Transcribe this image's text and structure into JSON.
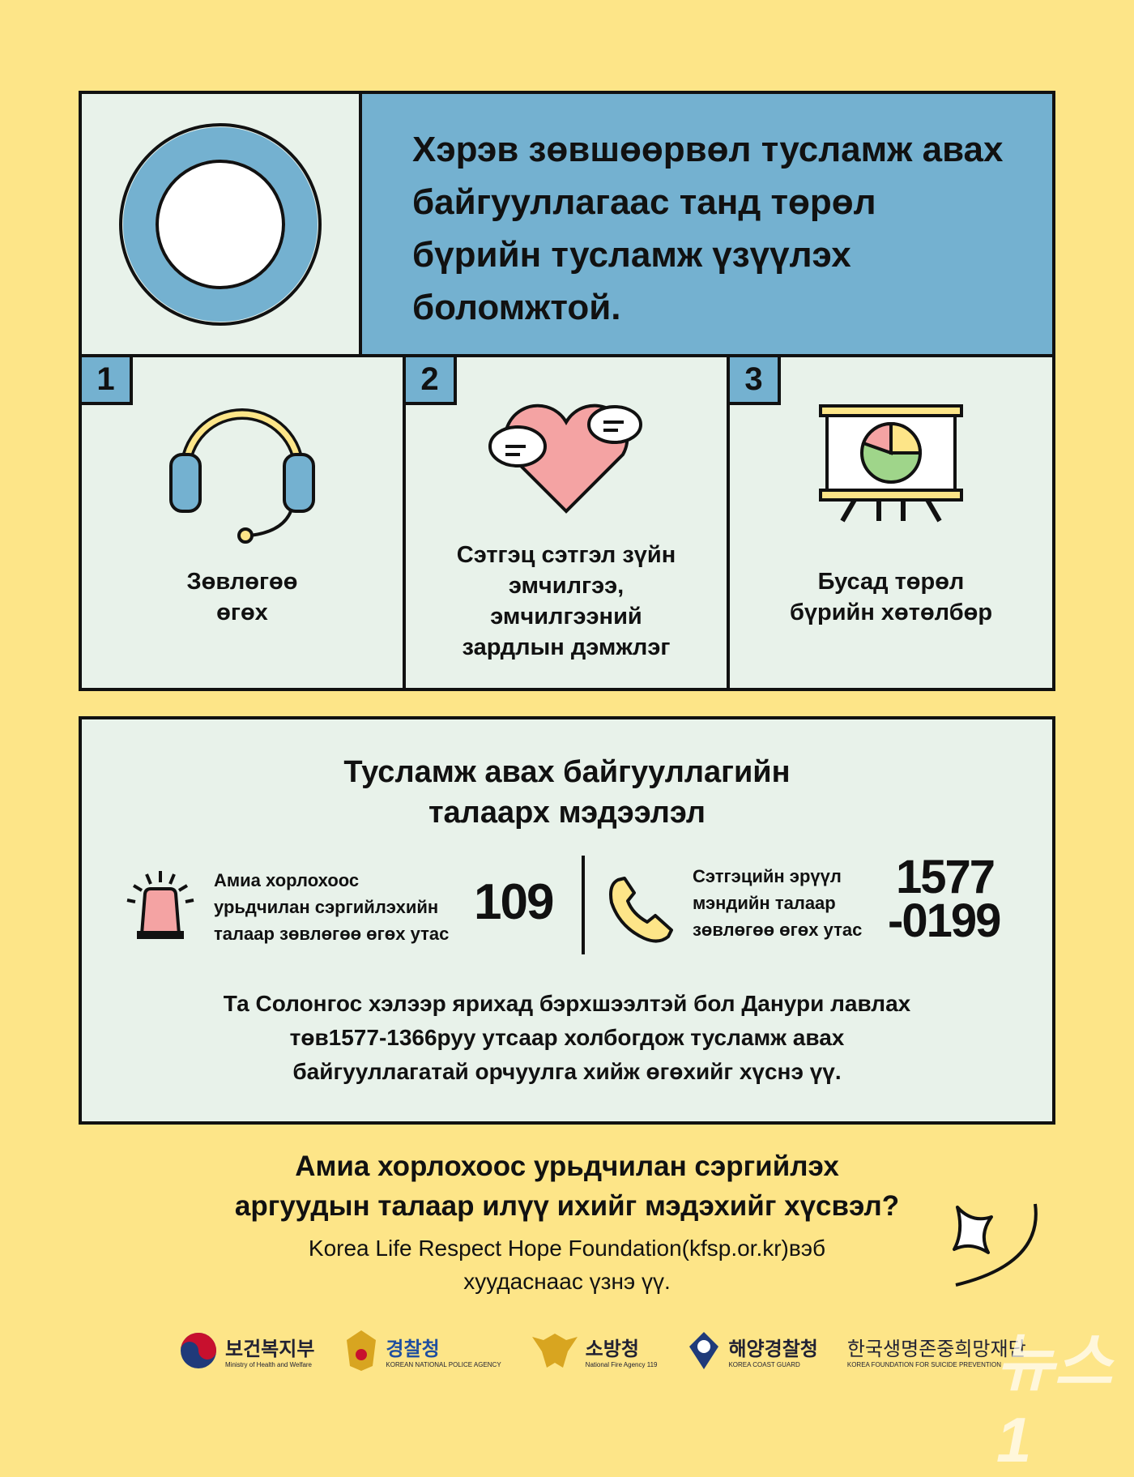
{
  "header": {
    "title": "Хэрэв зөвшөөрвөл тусламж авах байгууллагаас танд төрөл бүрийн тусламж үзүүлэх боломжтой.",
    "icon": "circle-o-icon"
  },
  "cards": [
    {
      "number": "1",
      "label_lines": [
        "Зөвлөгөө",
        "өгөх"
      ],
      "icon": "headset-icon"
    },
    {
      "number": "2",
      "label_lines": [
        "Сэтгэц сэтгэл зүйн",
        "эмчилгээ,",
        "эмчилгээний",
        "зардлын дэмжлэг"
      ],
      "icon": "heart-chat-icon"
    },
    {
      "number": "3",
      "label_lines": [
        "Бусад төрөл",
        "бүрийн хөтөлбөр"
      ],
      "icon": "presentation-chart-icon"
    }
  ],
  "info": {
    "title_lines": [
      "Тусламж авах байгууллагийн",
      "талаарх мэдээлэл"
    ],
    "hotline1": {
      "desc_lines": [
        "Амиа хорлохоос",
        "урьдчилан сэргийлэхийн",
        "талаар зөвлөгөө өгөх утас"
      ],
      "number": "109",
      "icon": "siren-icon"
    },
    "hotline2": {
      "desc_lines": [
        "Сэтгэцийн эрүүл",
        "мэндийн талаар",
        "зөвлөгөө өгөх утас"
      ],
      "number_lines": [
        "1577",
        "-0199"
      ],
      "icon": "phone-icon"
    },
    "note_lines": [
      "Та Солонгос хэлээр ярихад бэрхшээлтэй бол Данури лавлах",
      "төв1577-1366руу утсаар холбогдож тусламж авах",
      "байгууллагатай орчуулга хийж өгөхийг хүснэ үү."
    ]
  },
  "footer": {
    "question_lines": [
      "Амиа хорлохоос урьдчилан сэргийлэх",
      "аргуудын талаар илүү ихийг мэдэхийг хүсвэл?"
    ],
    "sub_lines": [
      "Korea Life Respect Hope Foundation(kfsp.or.kr)вэб",
      "хуудаснаас үзнэ үү."
    ]
  },
  "logos": [
    {
      "name": "보건복지부",
      "sub": "Ministry of Health and Welfare"
    },
    {
      "name": "경찰청",
      "sub": "KOREAN NATIONAL POLICE AGENCY"
    },
    {
      "name": "소방청",
      "sub": "National Fire Agency 119"
    },
    {
      "name": "해양경찰청",
      "sub": "KOREA COAST GUARD"
    },
    {
      "name": "한국생명존중희망재단",
      "sub": "KOREA FOUNDATION FOR SUICIDE PREVENTION"
    }
  ],
  "watermark": "뉴스1",
  "colors": {
    "background": "#fde588",
    "panel": "#e8f2ea",
    "blue": "#74b1d0",
    "pink": "#f4a3a3",
    "yellow": "#fde588",
    "green": "#9fd58a"
  }
}
